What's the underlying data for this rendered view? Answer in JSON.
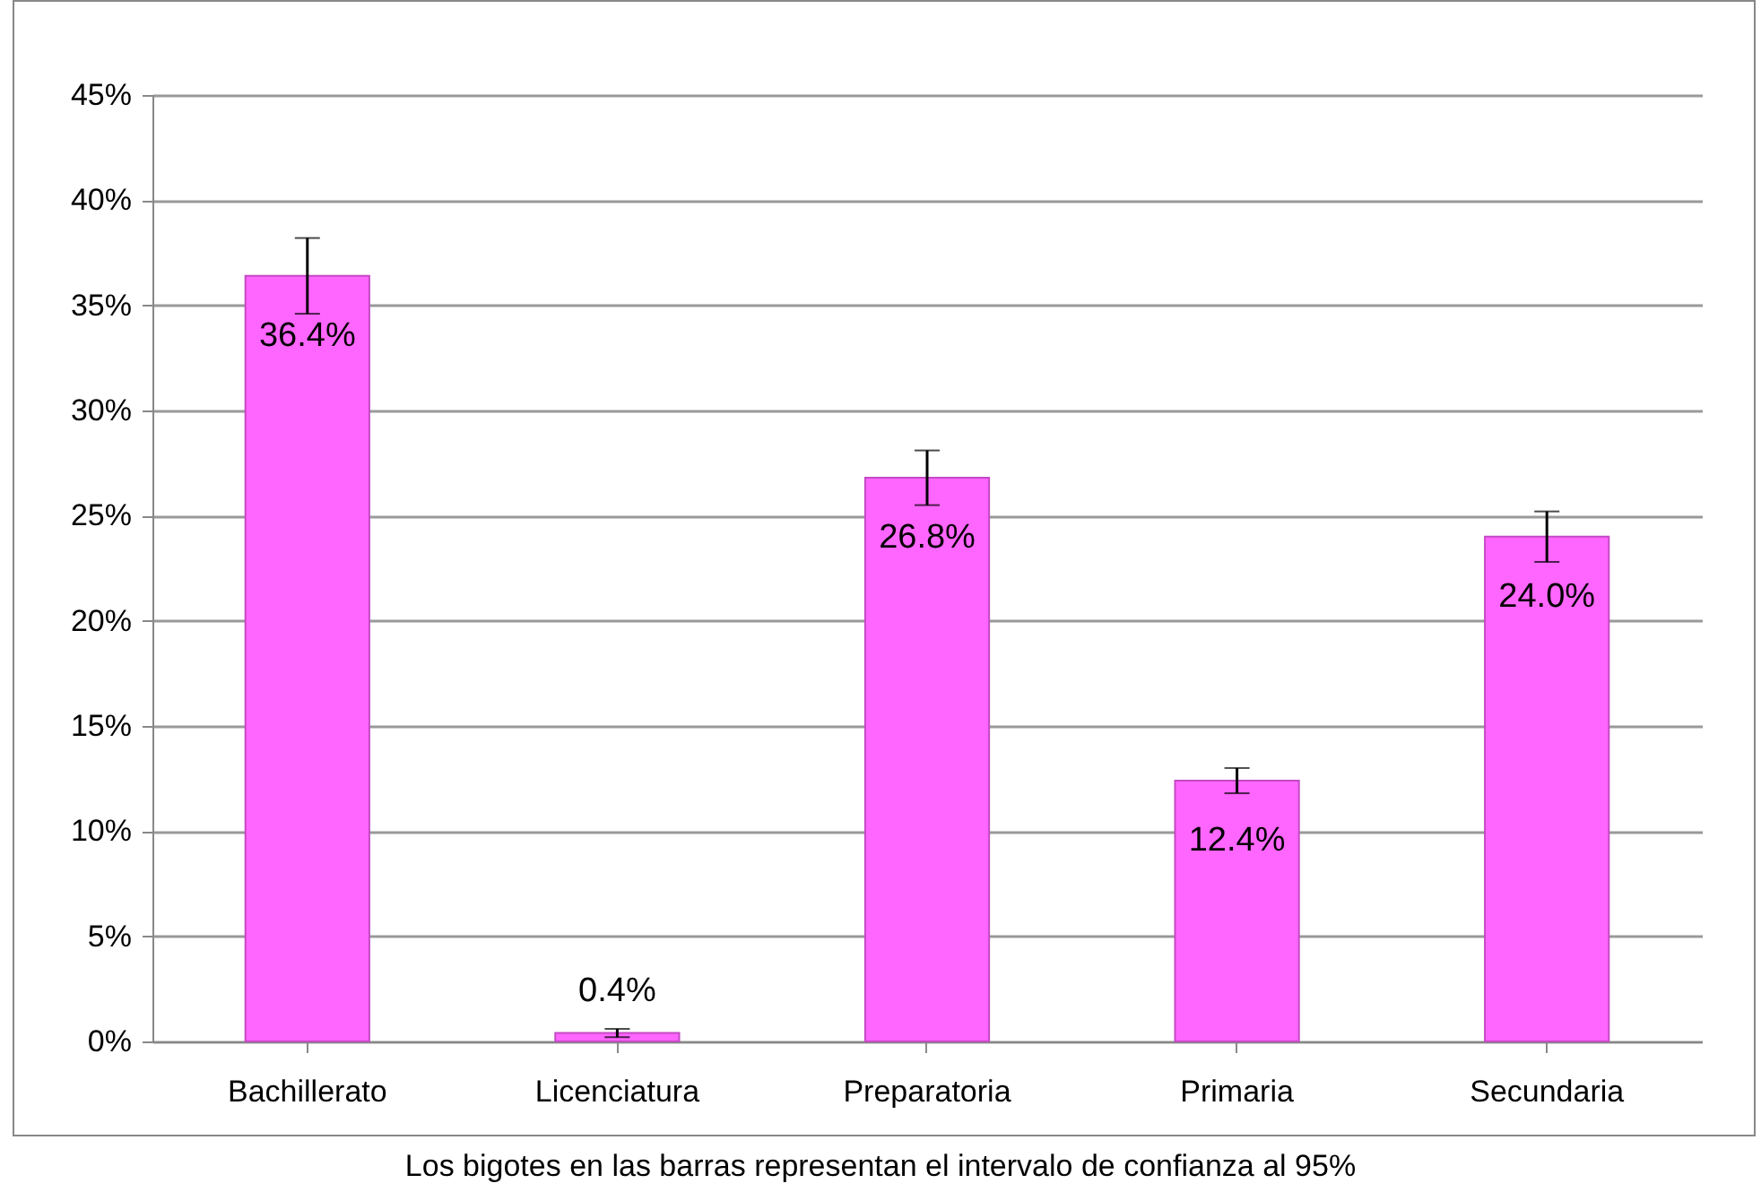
{
  "chart_data": {
    "type": "bar",
    "categories": [
      "Bachillerato",
      "Licenciatura",
      "Preparatoria",
      "Primaria",
      "Secundaria"
    ],
    "values": [
      36.4,
      0.4,
      26.8,
      12.4,
      24.0
    ],
    "errors": [
      1.8,
      0.2,
      1.3,
      0.6,
      1.2
    ],
    "value_labels": [
      "36.4%",
      "0.4%",
      "26.8%",
      "12.4%",
      "24.0%"
    ],
    "color": "#ff66ff",
    "ylim": [
      0,
      45
    ],
    "yticks": [
      {
        "value": 0,
        "label": "0%"
      },
      {
        "value": 5,
        "label": "5%"
      },
      {
        "value": 10,
        "label": "10%"
      },
      {
        "value": 15,
        "label": "15%"
      },
      {
        "value": 20,
        "label": "20%"
      },
      {
        "value": 25,
        "label": "25%"
      },
      {
        "value": 30,
        "label": "30%"
      },
      {
        "value": 35,
        "label": "35%"
      },
      {
        "value": 40,
        "label": "40%"
      },
      {
        "value": 45,
        "label": "45%"
      }
    ],
    "grid": "y",
    "annotations": [
      "Los bigotes en las barras representan el intervalo de confianza al 95%"
    ]
  }
}
